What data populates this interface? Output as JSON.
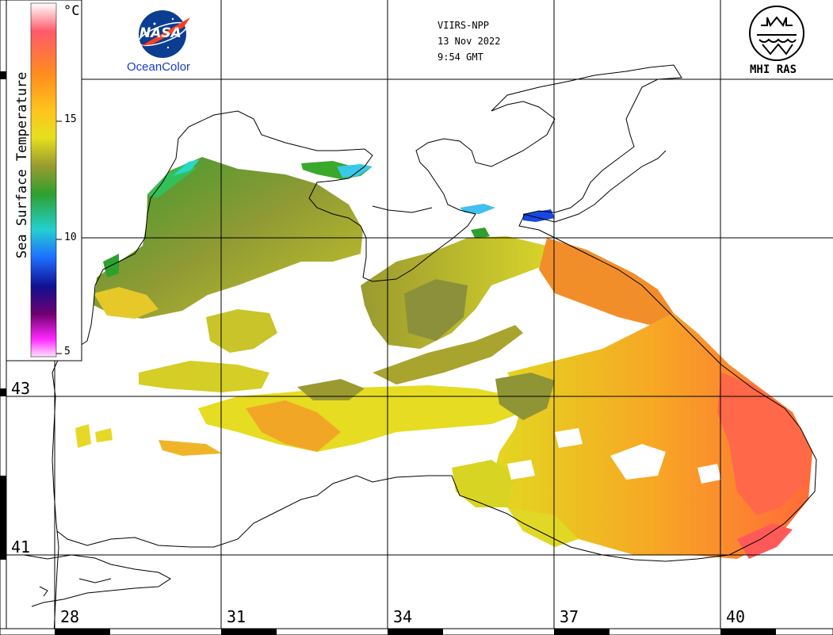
{
  "header": {
    "satellite": "VIIRS-NPP",
    "date": "13 Nov 2022",
    "time": "9:54 GMT"
  },
  "logos": {
    "nasa": "NASA",
    "oceancolor": "OceanColor",
    "mhi": "MHI RAS"
  },
  "colorbar": {
    "title": "Sea Surface Temperature",
    "unit": "°C",
    "ticks": [
      "15",
      "10",
      "5"
    ],
    "range": [
      5,
      20
    ],
    "colors": [
      "#ffffff",
      "#ff5060",
      "#ff8a1e",
      "#ffc01e",
      "#e8e01e",
      "#9a9a30",
      "#2ea02e",
      "#24d0d0",
      "#1e6eff",
      "#1010a0",
      "#700070",
      "#ff28ff",
      "#ffe0ff"
    ]
  },
  "axes": {
    "longitudes": [
      "28",
      "31",
      "34",
      "37",
      "40"
    ],
    "latitudes": [
      "43",
      "41"
    ]
  }
}
